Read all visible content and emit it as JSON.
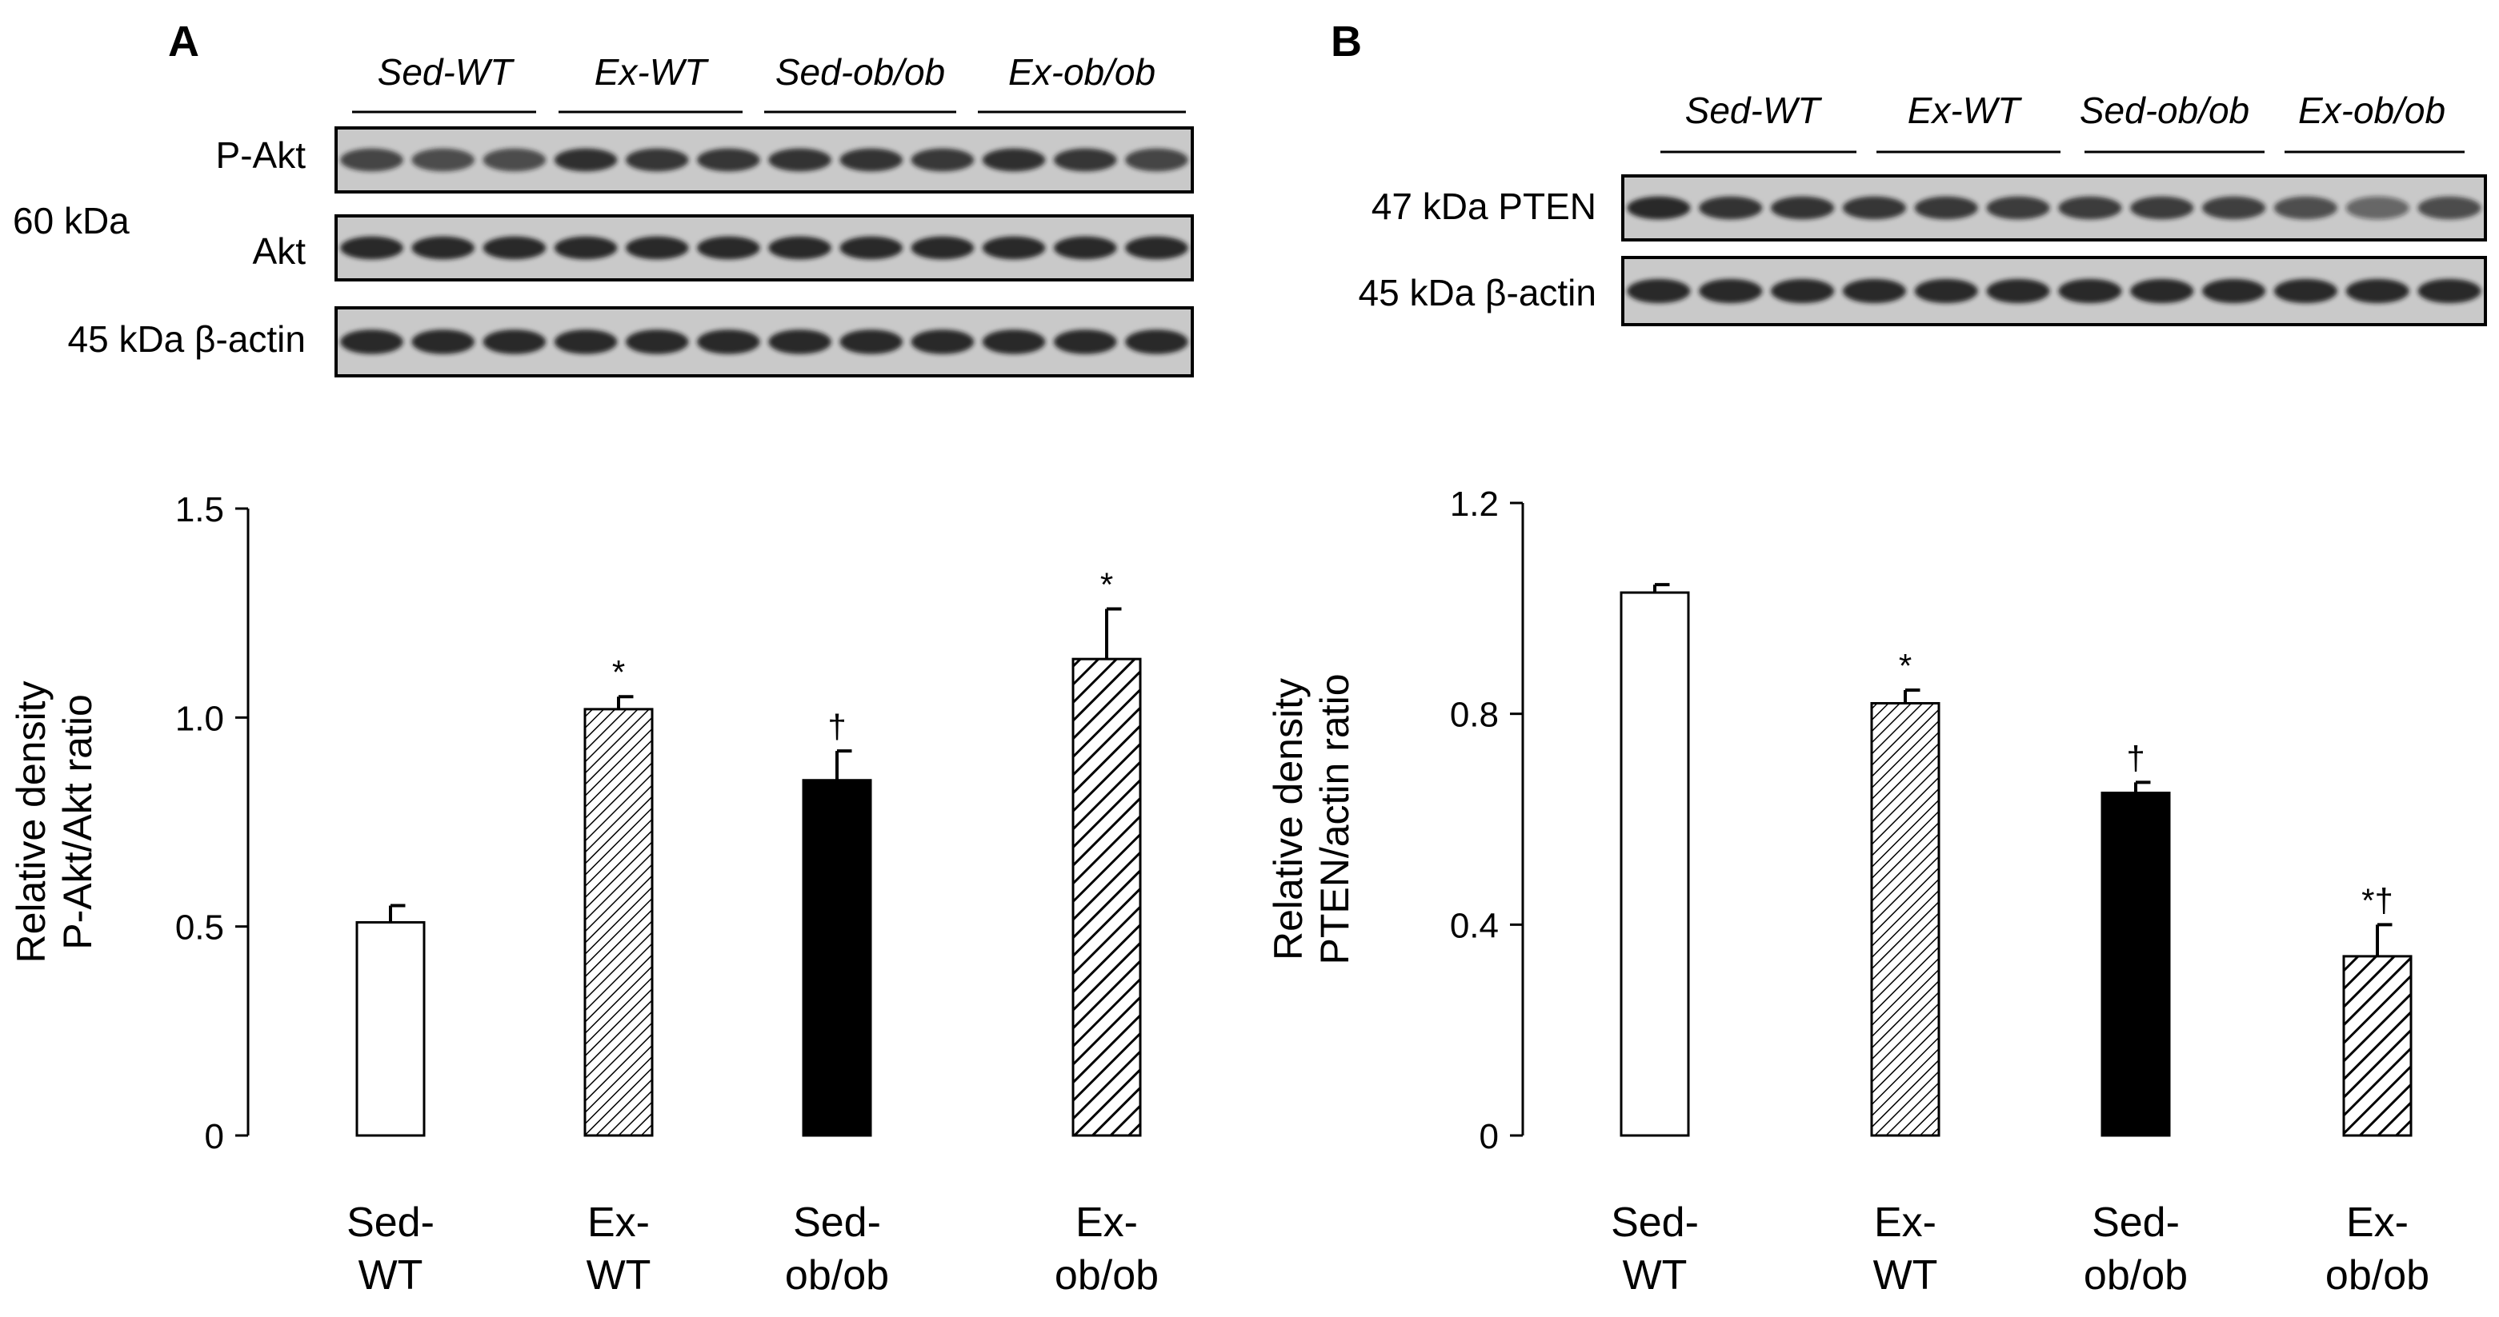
{
  "panel_a": {
    "letter": "A",
    "blot": {
      "groups": [
        "Sed-WT",
        "Ex-WT",
        "Sed-ob/ob",
        "Ex-ob/ob"
      ],
      "rows": [
        {
          "label": "P-Akt",
          "lanes": [
            0.78,
            0.72,
            0.72,
            0.95,
            0.9,
            0.9,
            0.92,
            0.92,
            0.88,
            0.95,
            0.9,
            0.78
          ]
        },
        {
          "label": "Akt",
          "lanes": [
            1,
            1,
            1,
            1,
            1,
            1,
            1,
            1,
            1,
            1,
            1,
            1
          ]
        },
        {
          "label": "45 kDa β-actin",
          "lanes": [
            1,
            1,
            1,
            1,
            1,
            1,
            1,
            1,
            1,
            1,
            1,
            1
          ]
        }
      ],
      "size_label": "60 kDa"
    }
  },
  "panel_b": {
    "letter": "B",
    "blot": {
      "groups": [
        "Sed-WT",
        "Ex-WT",
        "Sed-ob/ob",
        "Ex-ob/ob"
      ],
      "rows": [
        {
          "label": "47 kDa PTEN",
          "lanes": [
            1,
            0.92,
            0.92,
            0.9,
            0.88,
            0.85,
            0.85,
            0.85,
            0.82,
            0.7,
            0.45,
            0.72
          ]
        },
        {
          "label": "45 kDa β-actin",
          "lanes": [
            1,
            1,
            1,
            1,
            1,
            1,
            1,
            1,
            1,
            1,
            1,
            1
          ]
        }
      ]
    }
  },
  "chart_data": [
    {
      "type": "bar",
      "categories": [
        [
          "Sed-",
          "WT"
        ],
        [
          "Ex-",
          "WT"
        ],
        [
          "Sed-",
          "ob/ob"
        ],
        [
          "Ex-",
          "ob/ob"
        ]
      ],
      "values": [
        0.51,
        1.02,
        0.85,
        1.14
      ],
      "errors": [
        0.04,
        0.03,
        0.07,
        0.12
      ],
      "annotations": [
        "",
        "*",
        "†",
        "*"
      ],
      "fills": [
        "white",
        "hatch-fine",
        "black",
        "hatch-coarse"
      ],
      "ylabel": [
        "Relative density",
        "P-Akt/Akt ratio"
      ],
      "ylim": [
        0,
        1.5
      ],
      "yticks": [
        "0",
        "0.5",
        "1.0",
        "1.5"
      ],
      "ytick_values": [
        0,
        0.5,
        1.0,
        1.5
      ]
    },
    {
      "type": "bar",
      "categories": [
        [
          "Sed-",
          "WT"
        ],
        [
          "Ex-",
          "WT"
        ],
        [
          "Sed-",
          "ob/ob"
        ],
        [
          "Ex-",
          "ob/ob"
        ]
      ],
      "values": [
        1.03,
        0.82,
        0.65,
        0.34
      ],
      "errors": [
        0.015,
        0.025,
        0.02,
        0.06
      ],
      "annotations": [
        "",
        "*",
        "†",
        "*†"
      ],
      "fills": [
        "white",
        "hatch-fine",
        "black",
        "hatch-coarse"
      ],
      "ylabel": [
        "Relative density",
        "PTEN/actin ratio"
      ],
      "ylim": [
        0,
        1.2
      ],
      "yticks": [
        "0",
        "0.4",
        "0.8",
        "1.2"
      ],
      "ytick_values": [
        0,
        0.4,
        0.8,
        1.2
      ]
    }
  ]
}
